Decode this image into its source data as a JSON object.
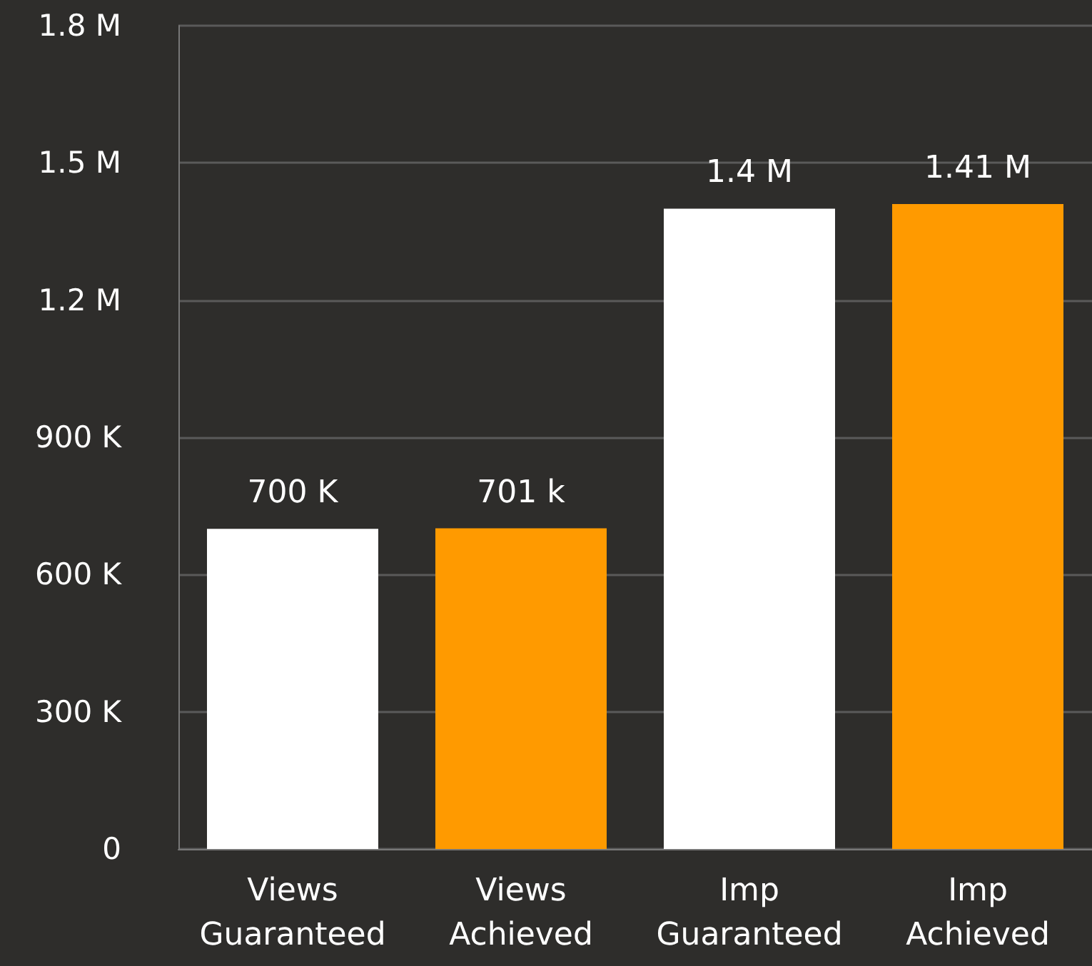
{
  "chart_data": {
    "type": "bar",
    "categories": [
      "Views\nGuaranteed",
      "Views\nAchieved",
      "Imp\nGuaranteed",
      "Imp\nAchieved"
    ],
    "values": [
      700000,
      701000,
      1400000,
      1410000
    ],
    "colors": [
      "#ffffff",
      "#ff9a00",
      "#ffffff",
      "#ff9a00"
    ],
    "value_labels": [
      "700 K",
      "701 k",
      "1.4 M",
      "1.41 M"
    ],
    "ylim": [
      0,
      1800000
    ],
    "yticks": [
      {
        "value": 0,
        "label": "0"
      },
      {
        "value": 300000,
        "label": "300 K"
      },
      {
        "value": 600000,
        "label": "600 K"
      },
      {
        "value": 900000,
        "label": "900 K"
      },
      {
        "value": 1200000,
        "label": "1.2 M"
      },
      {
        "value": 1500000,
        "label": "1.5 M"
      },
      {
        "value": 1800000,
        "label": "1.8 M"
      }
    ],
    "grid": "y"
  }
}
